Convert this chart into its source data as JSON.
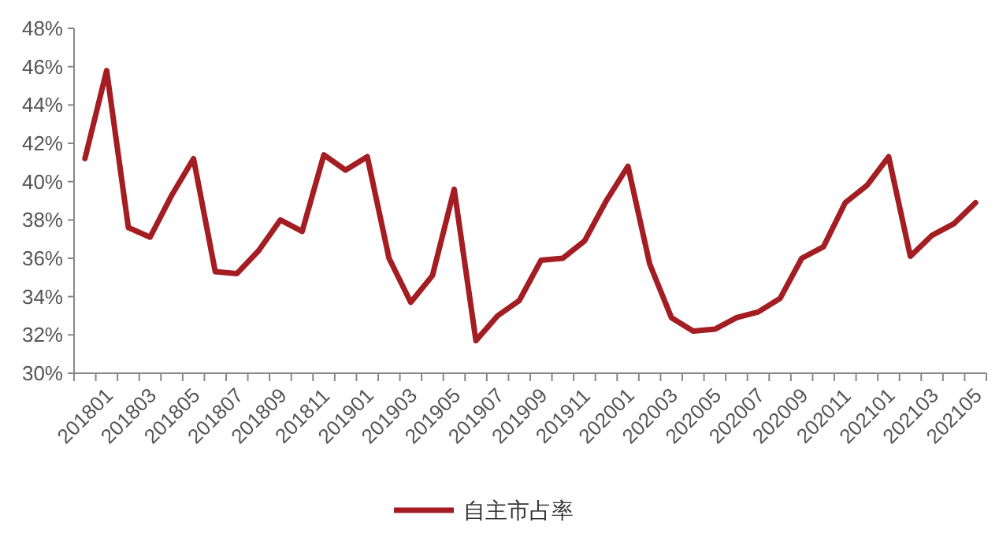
{
  "chart_data": {
    "type": "line",
    "categories": [
      "201801",
      null,
      "201803",
      null,
      "201805",
      null,
      "201807",
      null,
      "201809",
      null,
      "201811",
      null,
      "201901",
      null,
      "201903",
      null,
      "201905",
      null,
      "201907",
      null,
      "201909",
      null,
      "201911",
      null,
      "202001",
      null,
      "202003",
      null,
      "202005",
      null,
      "202007",
      null,
      "202009",
      null,
      "202011",
      null,
      "202101",
      null,
      "202103",
      null,
      "202105",
      null
    ],
    "series": [
      {
        "name": "自主市占率",
        "color": "#a31d22",
        "values": [
          41.2,
          45.8,
          37.6,
          37.1,
          39.3,
          41.2,
          35.3,
          35.2,
          36.4,
          38.0,
          37.4,
          41.4,
          40.6,
          41.3,
          36.0,
          33.7,
          35.1,
          39.6,
          31.7,
          33.0,
          33.8,
          35.9,
          36.0,
          36.9,
          39.0,
          40.8,
          35.7,
          32.9,
          32.2,
          32.3,
          32.9,
          33.2,
          33.9,
          36.0,
          36.6,
          38.9,
          39.8,
          41.3,
          36.1,
          37.2,
          37.8,
          38.9
        ]
      }
    ],
    "ylim": [
      30,
      48
    ],
    "yticks": [
      {
        "value": 30,
        "label": "30%"
      },
      {
        "value": 32,
        "label": "32%"
      },
      {
        "value": 34,
        "label": "34%"
      },
      {
        "value": 36,
        "label": "36%"
      },
      {
        "value": 38,
        "label": "38%"
      },
      {
        "value": 40,
        "label": "40%"
      },
      {
        "value": 42,
        "label": "42%"
      },
      {
        "value": 44,
        "label": "44%"
      },
      {
        "value": 46,
        "label": "46%"
      },
      {
        "value": 48,
        "label": "48%"
      }
    ],
    "legend": "bottom",
    "marker": "none",
    "line_style": "solid"
  }
}
